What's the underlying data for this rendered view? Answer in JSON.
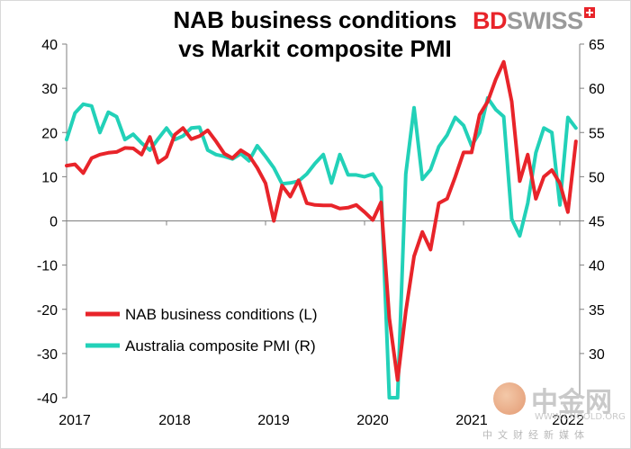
{
  "title": {
    "line1": "NAB business conditions",
    "line2": "vs Markit composite PMI"
  },
  "logo": {
    "bd": "BD",
    "swiss": "SWISS"
  },
  "watermark": {
    "name": "中金网",
    "url": "WWW.CNGOLD.ORG",
    "sub": "中文财经新媒体"
  },
  "colors": {
    "nab": "#e8242a",
    "pmi": "#22d1b8"
  },
  "chart_data": {
    "type": "line",
    "title": "NAB business conditions vs Markit composite PMI",
    "x_tick_labels": [
      "2017",
      "2018",
      "2019",
      "2020",
      "2021",
      "2022"
    ],
    "y_left": {
      "ylim": [
        -40,
        40
      ],
      "ticks": [
        -40,
        -30,
        -20,
        -10,
        0,
        10,
        20,
        30,
        40
      ]
    },
    "y_right": {
      "ylim": [
        25,
        65
      ],
      "ticks": [
        30,
        35,
        40,
        45,
        50,
        55,
        60,
        65
      ]
    },
    "grid": false,
    "legend_position": "bottom-left",
    "series": [
      {
        "name": "NAB business conditions (L)",
        "axis": "left",
        "x": [
          "2017-01",
          "2017-02",
          "2017-03",
          "2017-04",
          "2017-05",
          "2017-06",
          "2017-07",
          "2017-08",
          "2017-09",
          "2017-10",
          "2017-11",
          "2017-12",
          "2018-01",
          "2018-02",
          "2018-03",
          "2018-04",
          "2018-05",
          "2018-06",
          "2018-07",
          "2018-08",
          "2018-09",
          "2018-10",
          "2018-11",
          "2018-12",
          "2019-01",
          "2019-02",
          "2019-03",
          "2019-04",
          "2019-05",
          "2019-06",
          "2019-07",
          "2019-08",
          "2019-09",
          "2019-10",
          "2019-11",
          "2019-12",
          "2020-01",
          "2020-02",
          "2020-03",
          "2020-04",
          "2020-05",
          "2020-06",
          "2020-07",
          "2020-08",
          "2020-09",
          "2020-10",
          "2020-11",
          "2020-12",
          "2021-01",
          "2021-02",
          "2021-03",
          "2021-04",
          "2021-05",
          "2021-06",
          "2021-07",
          "2021-08",
          "2021-09",
          "2021-10",
          "2021-11",
          "2021-12",
          "2022-01",
          "2022-02",
          "2022-03"
        ],
        "values": [
          12.5,
          12.8,
          10.8,
          14.2,
          15.0,
          15.4,
          15.6,
          16.5,
          16.4,
          15.0,
          19.0,
          13.2,
          14.5,
          19.5,
          21.0,
          18.5,
          19.2,
          20.5,
          18.0,
          15.2,
          14.2,
          16.0,
          14.8,
          12.0,
          8.5,
          0.0,
          8.0,
          5.5,
          9.2,
          4.0,
          3.6,
          3.5,
          3.5,
          2.8,
          3.0,
          3.6,
          2.0,
          0.2,
          4.2,
          -22.0,
          -36.0,
          -20.5,
          -8.0,
          -2.5,
          -6.5,
          4.0,
          5.0,
          10.0,
          15.5,
          15.5,
          24.0,
          27.0,
          32.0,
          36.0,
          27.0,
          9.0,
          15.0,
          5.0,
          10.0,
          11.5,
          8.5,
          2.0,
          18.0
        ]
      },
      {
        "name": "Australia composite PMI (R)",
        "axis": "right",
        "x": [
          "2017-01",
          "2017-02",
          "2017-03",
          "2017-04",
          "2017-05",
          "2017-06",
          "2017-07",
          "2017-08",
          "2017-09",
          "2017-10",
          "2017-11",
          "2017-12",
          "2018-01",
          "2018-02",
          "2018-03",
          "2018-04",
          "2018-05",
          "2018-06",
          "2018-07",
          "2018-08",
          "2018-09",
          "2018-10",
          "2018-11",
          "2018-12",
          "2019-01",
          "2019-02",
          "2019-03",
          "2019-04",
          "2019-05",
          "2019-06",
          "2019-07",
          "2019-08",
          "2019-09",
          "2019-10",
          "2019-11",
          "2019-12",
          "2020-01",
          "2020-02",
          "2020-03",
          "2020-04",
          "2020-05",
          "2020-06",
          "2020-07",
          "2020-08",
          "2020-09",
          "2020-10",
          "2020-11",
          "2020-12",
          "2021-01",
          "2021-02",
          "2021-03",
          "2021-04",
          "2021-05",
          "2021-06",
          "2021-07",
          "2021-08",
          "2021-09",
          "2021-10",
          "2021-11",
          "2021-12",
          "2022-01",
          "2022-02",
          "2022-03"
        ],
        "values": [
          54.2,
          57.2,
          58.2,
          58.0,
          55.0,
          57.3,
          56.8,
          54.2,
          54.8,
          53.8,
          53.0,
          54.3,
          55.5,
          54.2,
          54.6,
          55.5,
          55.6,
          53.0,
          52.5,
          52.3,
          52.0,
          52.6,
          51.8,
          53.5,
          52.3,
          51.0,
          49.2,
          49.3,
          49.5,
          50.3,
          51.5,
          52.5,
          49.3,
          52.5,
          50.2,
          50.2,
          50.0,
          50.3,
          48.8,
          24.0,
          24.0,
          50.3,
          57.8,
          49.7,
          50.8,
          53.4,
          54.7,
          56.7,
          55.8,
          53.5,
          55.0,
          58.9,
          57.6,
          56.8,
          45.2,
          43.3,
          47.0,
          52.7,
          55.5,
          55.0,
          46.8,
          56.7,
          55.5
        ]
      }
    ]
  }
}
